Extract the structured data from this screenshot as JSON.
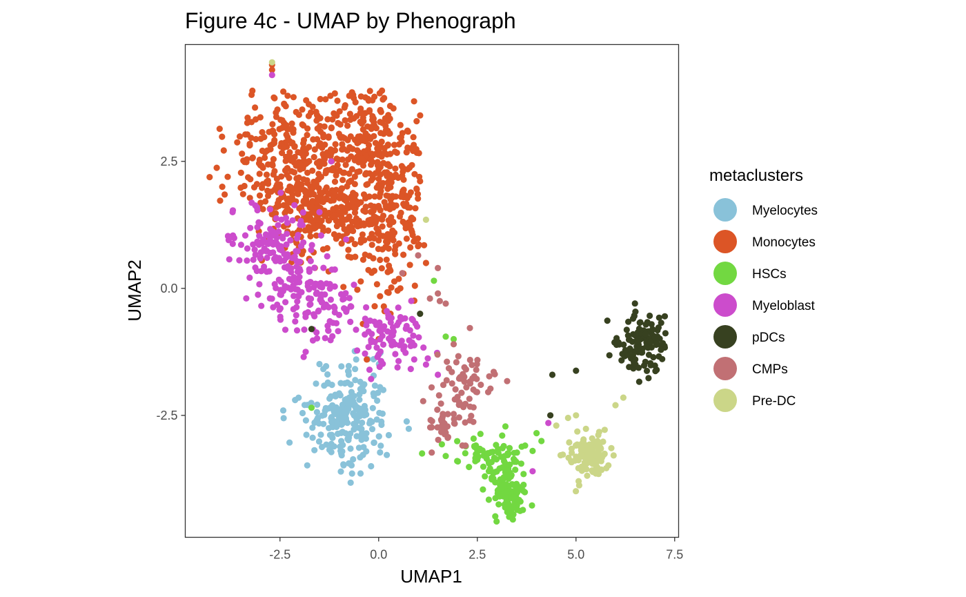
{
  "chart_data": {
    "type": "scatter",
    "title": "Figure 4c - UMAP by Phenograph",
    "xlabel": "UMAP1",
    "ylabel": "UMAP2",
    "xlim": [
      -4.9,
      7.6
    ],
    "ylim": [
      -4.9,
      4.8
    ],
    "x_ticks": [
      -2.5,
      0.0,
      2.5,
      5.0,
      7.5
    ],
    "y_ticks": [
      -2.5,
      0.0,
      2.5
    ],
    "x_tick_labels": [
      "-2.5",
      "0.0",
      "2.5",
      "5.0",
      "7.5"
    ],
    "y_tick_labels": [
      "-2.5",
      "0.0",
      "2.5"
    ],
    "grid": false,
    "legend_title": "metaclusters",
    "legend_position": "right",
    "series": [
      {
        "name": "Myelocytes",
        "color": "#89c2d9",
        "centers": [
          [
            -0.8,
            -2.5
          ]
        ],
        "spread": [
          [
            0.55,
            0.5
          ]
        ],
        "count": 230,
        "points": []
      },
      {
        "name": "Monocytes",
        "color": "#dc5526",
        "centers": [
          [
            -2.5,
            2.6
          ],
          [
            -0.4,
            2.8
          ],
          [
            0.2,
            1.5
          ],
          [
            -1.6,
            1.6
          ]
        ],
        "spread": [
          [
            0.9,
            0.8
          ],
          [
            0.8,
            0.7
          ],
          [
            0.6,
            0.8
          ],
          [
            0.7,
            0.5
          ]
        ],
        "count": 900,
        "points": [
          [
            -2.7,
            4.4
          ],
          [
            -2.7,
            4.3
          ],
          [
            0.15,
            -0.45
          ],
          [
            0.3,
            -0.5
          ],
          [
            0.55,
            0.0
          ],
          [
            -0.4,
            -0.7
          ],
          [
            0.0,
            -1.0
          ],
          [
            -0.3,
            -1.4
          ],
          [
            1.15,
            0.85
          ],
          [
            1.2,
            0.5
          ]
        ]
      },
      {
        "name": "HSCs",
        "color": "#72d841",
        "centers": [
          [
            2.9,
            -3.3
          ],
          [
            3.3,
            -4.1
          ]
        ],
        "spread": [
          [
            0.45,
            0.25
          ],
          [
            0.18,
            0.3
          ]
        ],
        "count": 170,
        "points": [
          [
            -1.7,
            -2.35
          ],
          [
            1.7,
            -0.95
          ],
          [
            1.9,
            -1.0
          ],
          [
            1.4,
            0.15
          ],
          [
            1.1,
            -3.25
          ],
          [
            1.7,
            -3.3
          ],
          [
            3.4,
            -4.55
          ],
          [
            3.9,
            -3.2
          ],
          [
            4.0,
            -2.85
          ]
        ]
      },
      {
        "name": "Myeloblast",
        "color": "#cc4ccc",
        "centers": [
          [
            -2.8,
            0.9
          ],
          [
            -1.6,
            -0.3
          ],
          [
            0.3,
            -0.95
          ],
          [
            -2.2,
            0.3
          ]
        ],
        "spread": [
          [
            0.5,
            0.4
          ],
          [
            0.6,
            0.45
          ],
          [
            0.45,
            0.35
          ],
          [
            0.5,
            0.45
          ]
        ],
        "count": 330,
        "points": [
          [
            -2.7,
            4.2
          ],
          [
            -3.8,
            0.95
          ],
          [
            -3.7,
            1.5
          ],
          [
            -1.9,
            -1.35
          ],
          [
            -1.85,
            -1.25
          ],
          [
            0.9,
            -1.4
          ],
          [
            1.2,
            -1.5
          ],
          [
            1.5,
            -1.7
          ],
          [
            3.9,
            -3.6
          ],
          [
            4.3,
            -2.65
          ],
          [
            -1.5,
            1.5
          ],
          [
            -1.2,
            2.5
          ]
        ]
      },
      {
        "name": "pDCs",
        "color": "#374120",
        "centers": [
          [
            6.7,
            -1.1
          ]
        ],
        "spread": [
          [
            0.35,
            0.25
          ]
        ],
        "count": 120,
        "points": [
          [
            4.4,
            -1.7
          ],
          [
            5.0,
            -1.62
          ],
          [
            4.35,
            -2.5
          ],
          [
            -1.7,
            -0.8
          ],
          [
            1.05,
            -0.5
          ]
        ]
      },
      {
        "name": "CMPs",
        "color": "#c17074",
        "centers": [
          [
            2.0,
            -2.1
          ],
          [
            1.5,
            -2.8
          ],
          [
            2.3,
            -1.8
          ]
        ],
        "spread": [
          [
            0.3,
            0.45
          ],
          [
            0.3,
            0.25
          ],
          [
            0.3,
            0.35
          ]
        ],
        "count": 95,
        "points": [
          [
            1.3,
            -0.2
          ],
          [
            1.5,
            -0.1
          ],
          [
            1.55,
            -0.25
          ],
          [
            1.7,
            -0.3
          ],
          [
            1.9,
            -1.1
          ],
          [
            1.5,
            0.4
          ],
          [
            1.0,
            0.65
          ],
          [
            0.6,
            0.3
          ]
        ]
      },
      {
        "name": "Pre-DC",
        "color": "#cbd688",
        "centers": [
          [
            5.3,
            -3.3
          ]
        ],
        "spread": [
          [
            0.3,
            0.25
          ]
        ],
        "count": 125,
        "points": [
          [
            1.2,
            1.35
          ],
          [
            6.0,
            -2.3
          ],
          [
            6.2,
            -2.15
          ],
          [
            4.8,
            -2.55
          ],
          [
            5.0,
            -2.5
          ],
          [
            4.5,
            -2.7
          ],
          [
            -2.7,
            4.45
          ]
        ]
      }
    ]
  }
}
